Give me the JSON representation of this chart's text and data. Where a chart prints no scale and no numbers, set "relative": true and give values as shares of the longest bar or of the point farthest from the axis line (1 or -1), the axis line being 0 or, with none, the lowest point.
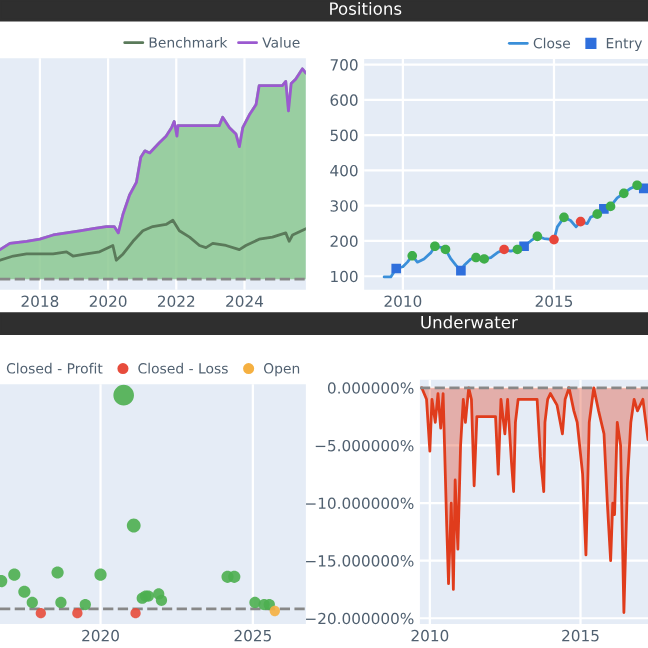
{
  "chart_data": [
    {
      "type": "area",
      "relative": true,
      "legend": "top right",
      "grid": "x",
      "xlim": [
        2016.83,
        2025.8
      ],
      "xticks": [
        2018,
        2020,
        2022,
        2024
      ],
      "ref_lines": [
        {
          "axis": "y",
          "value": 0,
          "color": "#888888",
          "line_style": "dashed"
        }
      ],
      "series": [
        {
          "name": "Benchmark",
          "type": "line",
          "color": "#5a7a5a",
          "x": [
            2016.83,
            2017.22,
            2017.61,
            2018.0,
            2018.39,
            2018.78,
            2018.97,
            2019.36,
            2019.75,
            2020.14,
            2020.24,
            2020.44,
            2020.73,
            2021.02,
            2021.31,
            2021.7,
            2021.9,
            2022.09,
            2022.39,
            2022.68,
            2022.87,
            2023.07,
            2023.46,
            2023.85,
            2024.04,
            2024.43,
            2024.82,
            2025.21,
            2025.31,
            2025.41,
            2025.8
          ],
          "values": [
            0.09,
            0.11,
            0.12,
            0.12,
            0.12,
            0.13,
            0.11,
            0.12,
            0.13,
            0.16,
            0.09,
            0.12,
            0.18,
            0.23,
            0.25,
            0.26,
            0.28,
            0.23,
            0.2,
            0.16,
            0.15,
            0.17,
            0.16,
            0.14,
            0.16,
            0.19,
            0.2,
            0.22,
            0.18,
            0.21,
            0.24
          ]
        },
        {
          "type": "area",
          "color": "#8cc992",
          "x": [
            2016.83,
            2017.12,
            2017.61,
            2018.0,
            2018.39,
            2018.78,
            2019.17,
            2019.56,
            2019.95,
            2020.18,
            2020.3,
            2020.44,
            2020.63,
            2020.83,
            2020.96,
            2021.08,
            2021.22,
            2021.51,
            2021.7,
            2021.86,
            2021.94,
            2022.02,
            2022.05,
            2023.26,
            2023.36,
            2023.56,
            2023.75,
            2023.85,
            2023.95,
            2024.14,
            2024.34,
            2024.43,
            2025.11,
            2025.21,
            2025.29,
            2025.37,
            2025.5,
            2025.7,
            2025.8
          ],
          "values": [
            0.14,
            0.17,
            0.18,
            0.19,
            0.21,
            0.22,
            0.23,
            0.24,
            0.25,
            0.25,
            0.22,
            0.31,
            0.4,
            0.46,
            0.58,
            0.61,
            0.6,
            0.65,
            0.68,
            0.72,
            0.75,
            0.68,
            0.73,
            0.73,
            0.77,
            0.72,
            0.69,
            0.63,
            0.72,
            0.78,
            0.83,
            0.92,
            0.92,
            0.94,
            0.8,
            0.93,
            0.95,
            1.0,
            0.98
          ]
        },
        {
          "name": "Value",
          "type": "line",
          "color": "#9b59d0",
          "x": [
            2016.83,
            2017.12,
            2017.61,
            2018.0,
            2018.39,
            2018.78,
            2019.17,
            2019.56,
            2019.95,
            2020.18,
            2020.3,
            2020.44,
            2020.63,
            2020.83,
            2020.96,
            2021.08,
            2021.22,
            2021.51,
            2021.7,
            2021.86,
            2021.94,
            2022.02,
            2022.05,
            2023.26,
            2023.36,
            2023.56,
            2023.75,
            2023.85,
            2023.95,
            2024.14,
            2024.34,
            2024.43,
            2025.11,
            2025.21,
            2025.29,
            2025.37,
            2025.5,
            2025.7,
            2025.8
          ],
          "values": [
            0.14,
            0.17,
            0.18,
            0.19,
            0.21,
            0.22,
            0.23,
            0.24,
            0.25,
            0.25,
            0.22,
            0.31,
            0.4,
            0.46,
            0.58,
            0.61,
            0.6,
            0.65,
            0.68,
            0.72,
            0.75,
            0.68,
            0.73,
            0.73,
            0.77,
            0.72,
            0.69,
            0.63,
            0.72,
            0.78,
            0.83,
            0.92,
            0.92,
            0.94,
            0.8,
            0.93,
            0.95,
            1.0,
            0.98
          ]
        }
      ]
    },
    {
      "type": "line",
      "title": "Positions",
      "legend": "top right",
      "grid": true,
      "xlim": [
        2008.72,
        2018.11
      ],
      "xticks": [
        2010,
        2015
      ],
      "ylim": [
        62,
        716
      ],
      "yticks": [
        100,
        200,
        300,
        400,
        500,
        600,
        700
      ],
      "series": [
        {
          "name": "Close",
          "type": "line",
          "color": "#3a8fd9",
          "x": [
            2009.38,
            2009.6,
            2009.78,
            2010.0,
            2010.15,
            2010.31,
            2010.48,
            2010.7,
            2010.93,
            2011.06,
            2011.26,
            2011.41,
            2011.59,
            2011.76,
            2011.92,
            2012.03,
            2012.25,
            2012.42,
            2012.69,
            2012.91,
            2013.13,
            2013.35,
            2013.57,
            2013.79,
            2014.01,
            2014.23,
            2014.45,
            2014.67,
            2015.0,
            2015.11,
            2015.33,
            2015.55,
            2015.73,
            2015.88,
            2016.1,
            2016.21,
            2016.43,
            2016.65,
            2016.87,
            2017.09,
            2017.31,
            2017.53,
            2017.75,
            2017.97,
            2018.11
          ],
          "values": [
            98,
            98,
            122,
            127,
            140,
            158,
            140,
            149,
            167,
            185,
            182,
            176,
            149,
            131,
            116,
            131,
            149,
            153,
            149,
            153,
            167,
            176,
            171,
            176,
            185,
            200,
            213,
            207,
            204,
            240,
            267,
            258,
            240,
            255,
            249,
            267,
            276,
            291,
            298,
            322,
            335,
            349,
            358,
            349,
            345
          ]
        },
        {
          "name": "Entry",
          "type": "scatter",
          "marker": "square",
          "color": "#2f6fdc",
          "x": [
            2009.78,
            2011.92,
            2014.01,
            2016.65,
            2017.97
          ],
          "values": [
            122,
            116,
            185,
            291,
            349
          ]
        },
        {
          "type": "scatter",
          "marker": "circle",
          "color": "#3fae49",
          "x": [
            2010.31,
            2011.06,
            2011.41,
            2012.42,
            2012.69,
            2013.79,
            2014.45,
            2015.33,
            2016.43,
            2016.87,
            2017.31,
            2017.75
          ],
          "values": [
            158,
            185,
            176,
            153,
            149,
            176,
            213,
            267,
            276,
            298,
            335,
            358
          ]
        },
        {
          "type": "scatter",
          "marker": "circle",
          "color": "#e8463a",
          "x": [
            2013.35,
            2015.0,
            2015.88
          ],
          "values": [
            176,
            204,
            255
          ]
        }
      ]
    },
    {
      "type": "bubble",
      "relative": true,
      "legend": "top right",
      "grid": "x",
      "xlim": [
        2016.7,
        2026.74
      ],
      "xticks": [
        2020,
        2025
      ],
      "ref_lines": [
        {
          "axis": "y",
          "value": 0,
          "color": "#888888",
          "line_style": "dashed"
        }
      ],
      "series": [
        {
          "name": "Closed - Profit",
          "color": "#4caf50",
          "x": [
            2016.74,
            2017.17,
            2017.5,
            2017.76,
            2018.59,
            2018.7,
            2019.5,
            2020.0,
            2020.76,
            2021.09,
            2021.37,
            2021.48,
            2021.57,
            2021.91,
            2022.0,
            2024.17,
            2024.39,
            2025.07,
            2025.37,
            2025.54
          ],
          "values": [
            0.13,
            0.16,
            0.08,
            0.03,
            0.17,
            0.03,
            0.02,
            0.16,
            1.0,
            0.39,
            0.05,
            0.06,
            0.06,
            0.07,
            0.04,
            0.15,
            0.15,
            0.03,
            0.02,
            0.02
          ],
          "sizes": [
            0.35,
            0.35,
            0.35,
            0.3,
            0.35,
            0.3,
            0.3,
            0.35,
            1,
            0.45,
            0.3,
            0.3,
            0.3,
            0.3,
            0.3,
            0.35,
            0.35,
            0.3,
            0.3,
            0.3
          ]
        },
        {
          "name": "Closed - Loss",
          "color": "#e74c3c",
          "x": [
            2018.04,
            2019.24,
            2021.15
          ],
          "values": [
            -0.02,
            -0.02,
            -0.02
          ],
          "sizes": [
            0.25,
            0.25,
            0.25
          ]
        },
        {
          "name": "Open",
          "color": "#f5b041",
          "x": [
            2025.72
          ],
          "values": [
            -0.01
          ],
          "sizes": [
            0.25
          ]
        }
      ]
    },
    {
      "type": "area",
      "title": "Underwater",
      "grid": true,
      "xlim": [
        2009.67,
        2017.24
      ],
      "xticks": [
        2010,
        2015
      ],
      "ylim": [
        -20.5,
        0.7
      ],
      "yticks": [
        {
          "value": 0,
          "label": "0.000000%"
        },
        {
          "value": -5,
          "label": "−5.000000%"
        },
        {
          "value": -10,
          "label": "−10.000000%"
        },
        {
          "value": -15,
          "label": "−15.000000%"
        },
        {
          "value": -20,
          "label": "−20.000000%"
        }
      ],
      "ref_lines": [
        {
          "axis": "y",
          "value": 0,
          "color": "#888888",
          "line_style": "dashed"
        }
      ],
      "series": [
        {
          "type": "area",
          "color": "#e03c1c",
          "x": [
            2009.73,
            2009.89,
            2010.0,
            2010.07,
            2010.18,
            2010.27,
            2010.36,
            2010.44,
            2010.56,
            2010.62,
            2010.71,
            2010.78,
            2010.84,
            2010.93,
            2011.02,
            2011.11,
            2011.18,
            2011.29,
            2011.38,
            2011.47,
            2011.56,
            2012.18,
            2012.27,
            2012.36,
            2012.49,
            2012.58,
            2012.71,
            2012.78,
            2012.84,
            2012.93,
            2013.56,
            2013.67,
            2013.78,
            2013.82,
            2013.91,
            2014.0,
            2014.22,
            2014.4,
            2014.49,
            2014.62,
            2014.78,
            2014.89,
            2015.07,
            2015.18,
            2015.29,
            2015.44,
            2015.6,
            2015.78,
            2015.89,
            2016.0,
            2016.07,
            2016.13,
            2016.22,
            2016.33,
            2016.44,
            2016.56,
            2016.67,
            2016.78,
            2016.89,
            2017.07,
            2017.24
          ],
          "values": [
            0,
            -1,
            -5.5,
            -1,
            -3,
            -0.5,
            -3.5,
            -0.5,
            -12,
            -17,
            -10,
            -17.5,
            -8,
            -14,
            -5,
            -1,
            -3,
            0,
            -1,
            -8.5,
            -2.5,
            -2.5,
            -7.5,
            -1,
            -4,
            -1,
            -6.5,
            -9,
            -3,
            -1,
            -1,
            -6,
            -9,
            -3,
            -1,
            -0.5,
            -1.5,
            -4,
            -1,
            0,
            -2,
            -3,
            -7.5,
            -14.5,
            -3,
            0,
            -2,
            -4,
            -10,
            -15,
            -10,
            -11,
            -3,
            -5,
            -19.5,
            -8,
            -3,
            -1,
            -2,
            -1,
            -4.5
          ]
        }
      ]
    }
  ]
}
